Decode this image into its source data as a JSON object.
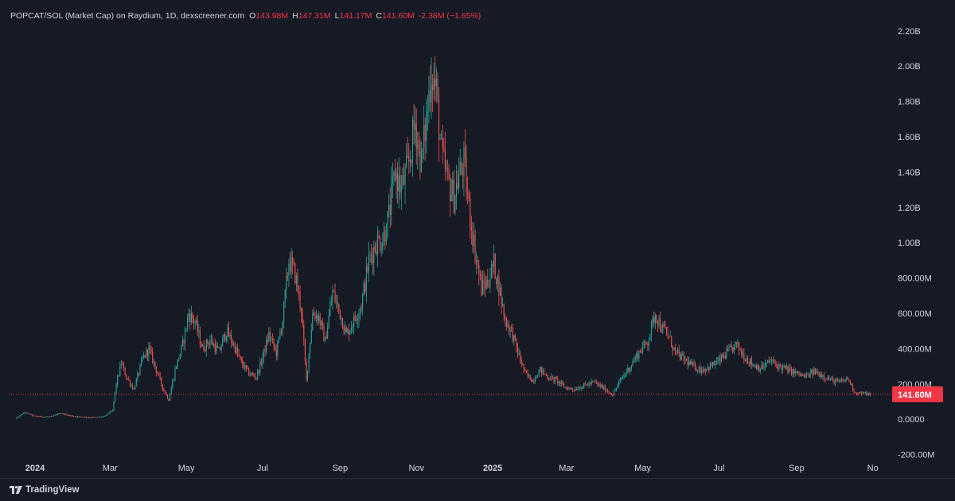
{
  "legend": {
    "symbol": "POPCAT/SOL (Market Cap) on Raydium, 1D, dexscreener.com",
    "open_key": "O",
    "open": "143.98M",
    "high_key": "H",
    "high": "147.31M",
    "low_key": "L",
    "low": "141.17M",
    "close_key": "C",
    "close": "141.60M",
    "change": "-2.38M (−1.65%)"
  },
  "price_tag": "141.60M",
  "branding": {
    "name": "TradingView",
    "icon": "tradingview-logo-icon"
  },
  "colors": {
    "background": "#161a25",
    "up": "#26a69a",
    "down": "#ef5350",
    "text": "#d1d4dc",
    "price_tag": "#f23645"
  },
  "chart_data": {
    "type": "candlestick",
    "title": "",
    "xlabel": "",
    "ylabel": "",
    "y_unit": "USD market cap",
    "ylim": [
      -200000000,
      2300000000
    ],
    "y_ticks": [
      -200000000,
      0,
      200000000,
      400000000,
      600000000,
      800000000,
      1000000000,
      1200000000,
      1400000000,
      1600000000,
      1800000000,
      2000000000,
      2200000000
    ],
    "y_tick_labels": [
      "-200.00M",
      "0.0000",
      "200.00M",
      "400.00M",
      "600.00M",
      "800.00M",
      "1.00B",
      "1.20B",
      "1.40B",
      "1.60B",
      "1.80B",
      "2.00B",
      "2.20B"
    ],
    "x_ticks": [
      "2024-01-01",
      "2024-03-01",
      "2024-05-01",
      "2024-07-01",
      "2024-09-01",
      "2024-11-01",
      "2025-01-01",
      "2025-03-01",
      "2025-05-01",
      "2025-07-01",
      "2025-09-01",
      "2025-11-01"
    ],
    "x_tick_labels": [
      "2024",
      "Mar",
      "May",
      "Jul",
      "Sep",
      "Nov",
      "2025",
      "Mar",
      "May",
      "Jul",
      "Sep",
      "No"
    ],
    "x_range": [
      "2023-12-11",
      "2025-11-12"
    ],
    "last_price": 141600000,
    "grid": false,
    "series": [
      {
        "name": "POPCAT/SOL",
        "points": [
          [
            "2023-12-17",
            5000000
          ],
          [
            "2023-12-24",
            40000000
          ],
          [
            "2023-12-31",
            18000000
          ],
          [
            "2024-01-07",
            15000000
          ],
          [
            "2024-01-14",
            14000000
          ],
          [
            "2024-01-21",
            35000000
          ],
          [
            "2024-01-28",
            22000000
          ],
          [
            "2024-02-04",
            15000000
          ],
          [
            "2024-02-11",
            12000000
          ],
          [
            "2024-02-18",
            10000000
          ],
          [
            "2024-02-25",
            15000000
          ],
          [
            "2024-03-03",
            50000000
          ],
          [
            "2024-03-06",
            200000000
          ],
          [
            "2024-03-10",
            320000000
          ],
          [
            "2024-03-14",
            240000000
          ],
          [
            "2024-03-20",
            170000000
          ],
          [
            "2024-03-27",
            340000000
          ],
          [
            "2024-04-01",
            400000000
          ],
          [
            "2024-04-06",
            300000000
          ],
          [
            "2024-04-12",
            180000000
          ],
          [
            "2024-04-17",
            110000000
          ],
          [
            "2024-04-22",
            280000000
          ],
          [
            "2024-04-28",
            420000000
          ],
          [
            "2024-05-03",
            600000000
          ],
          [
            "2024-05-08",
            550000000
          ],
          [
            "2024-05-14",
            400000000
          ],
          [
            "2024-05-20",
            450000000
          ],
          [
            "2024-05-27",
            380000000
          ],
          [
            "2024-06-02",
            500000000
          ],
          [
            "2024-06-08",
            420000000
          ],
          [
            "2024-06-14",
            320000000
          ],
          [
            "2024-06-20",
            260000000
          ],
          [
            "2024-06-26",
            240000000
          ],
          [
            "2024-07-01",
            350000000
          ],
          [
            "2024-07-06",
            480000000
          ],
          [
            "2024-07-12",
            380000000
          ],
          [
            "2024-07-17",
            560000000
          ],
          [
            "2024-07-22",
            900000000
          ],
          [
            "2024-07-27",
            820000000
          ],
          [
            "2024-08-01",
            620000000
          ],
          [
            "2024-08-05",
            220000000
          ],
          [
            "2024-08-10",
            600000000
          ],
          [
            "2024-08-15",
            580000000
          ],
          [
            "2024-08-20",
            440000000
          ],
          [
            "2024-08-26",
            720000000
          ],
          [
            "2024-09-01",
            600000000
          ],
          [
            "2024-09-06",
            480000000
          ],
          [
            "2024-09-12",
            560000000
          ],
          [
            "2024-09-18",
            650000000
          ],
          [
            "2024-09-24",
            900000000
          ],
          [
            "2024-09-30",
            1000000000
          ],
          [
            "2024-10-05",
            1020000000
          ],
          [
            "2024-10-10",
            1150000000
          ],
          [
            "2024-10-15",
            1400000000
          ],
          [
            "2024-10-20",
            1300000000
          ],
          [
            "2024-10-26",
            1450000000
          ],
          [
            "2024-10-31",
            1680000000
          ],
          [
            "2024-11-05",
            1450000000
          ],
          [
            "2024-11-09",
            1700000000
          ],
          [
            "2024-11-13",
            1980000000
          ],
          [
            "2024-11-17",
            1850000000
          ],
          [
            "2024-11-21",
            1500000000
          ],
          [
            "2024-11-26",
            1350000000
          ],
          [
            "2024-12-01",
            1260000000
          ],
          [
            "2024-12-05",
            1380000000
          ],
          [
            "2024-12-09",
            1450000000
          ],
          [
            "2024-12-13",
            1200000000
          ],
          [
            "2024-12-18",
            950000000
          ],
          [
            "2024-12-23",
            740000000
          ],
          [
            "2024-12-28",
            780000000
          ],
          [
            "2025-01-02",
            880000000
          ],
          [
            "2025-01-06",
            750000000
          ],
          [
            "2025-01-11",
            560000000
          ],
          [
            "2025-01-16",
            500000000
          ],
          [
            "2025-01-21",
            380000000
          ],
          [
            "2025-01-27",
            260000000
          ],
          [
            "2025-02-02",
            220000000
          ],
          [
            "2025-02-08",
            280000000
          ],
          [
            "2025-02-14",
            240000000
          ],
          [
            "2025-02-21",
            220000000
          ],
          [
            "2025-02-28",
            180000000
          ],
          [
            "2025-03-07",
            170000000
          ],
          [
            "2025-03-15",
            190000000
          ],
          [
            "2025-03-23",
            210000000
          ],
          [
            "2025-03-31",
            175000000
          ],
          [
            "2025-04-07",
            140000000
          ],
          [
            "2025-04-14",
            230000000
          ],
          [
            "2025-04-21",
            300000000
          ],
          [
            "2025-04-28",
            380000000
          ],
          [
            "2025-05-05",
            440000000
          ],
          [
            "2025-05-11",
            600000000
          ],
          [
            "2025-05-16",
            520000000
          ],
          [
            "2025-05-21",
            480000000
          ],
          [
            "2025-05-27",
            380000000
          ],
          [
            "2025-06-03",
            340000000
          ],
          [
            "2025-06-10",
            300000000
          ],
          [
            "2025-06-17",
            280000000
          ],
          [
            "2025-06-24",
            300000000
          ],
          [
            "2025-07-01",
            330000000
          ],
          [
            "2025-07-08",
            380000000
          ],
          [
            "2025-07-15",
            420000000
          ],
          [
            "2025-07-21",
            360000000
          ],
          [
            "2025-07-28",
            310000000
          ],
          [
            "2025-08-04",
            290000000
          ],
          [
            "2025-08-11",
            330000000
          ],
          [
            "2025-08-18",
            300000000
          ],
          [
            "2025-08-25",
            280000000
          ],
          [
            "2025-09-01",
            260000000
          ],
          [
            "2025-09-08",
            240000000
          ],
          [
            "2025-09-15",
            270000000
          ],
          [
            "2025-09-22",
            250000000
          ],
          [
            "2025-09-29",
            220000000
          ],
          [
            "2025-10-06",
            210000000
          ],
          [
            "2025-10-12",
            230000000
          ],
          [
            "2025-10-18",
            150000000
          ],
          [
            "2025-10-25",
            145000000
          ],
          [
            "2025-10-30",
            141600000
          ]
        ]
      }
    ]
  }
}
